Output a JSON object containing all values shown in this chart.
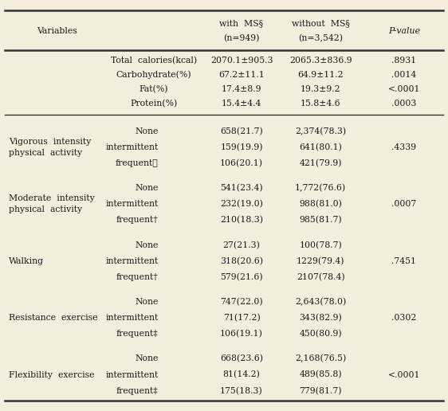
{
  "bg_color": "#f5eedc",
  "text_color": "#1a1a1a",
  "line_color": "#333333",
  "font_size": 7.8,
  "header": {
    "variables": "Variables",
    "with_ms": "with  MS§",
    "n_with": "(n=949)",
    "without_ms": "without  MS§",
    "n_without": "(n=3,542)",
    "pvalue": "P-value"
  },
  "diet_rows": [
    [
      "Total  calories(kcal)",
      "2070.1±905.3",
      "2065.3±836.9",
      ".8931"
    ],
    [
      "Carbohydrate(%)",
      "67.2±11.1",
      "64.9±11.2",
      ".0014"
    ],
    [
      "Fat(%)",
      "17.4±8.9",
      "19.3±9.2",
      "<.0001"
    ],
    [
      "Protein(%)",
      "15.4±4.4",
      "15.8±4.6",
      ".0003"
    ]
  ],
  "exercise_sections": [
    {
      "label": [
        "Vigorous  intensity",
        "physical  activity"
      ],
      "rows": [
        [
          "None",
          "658(21.7)",
          "2,374(78.3)",
          ""
        ],
        [
          "intermittent",
          "159(19.9)",
          "641(80.1)",
          ".4339"
        ],
        [
          "frequent★",
          "106(20.1)",
          "421(79.9)",
          ""
        ]
      ]
    },
    {
      "label": [
        "Moderate  intensity",
        "physical  activity"
      ],
      "rows": [
        [
          "None",
          "541(23.4)",
          "1,772(76.6)",
          ""
        ],
        [
          "intermittent",
          "232(19.0)",
          "988(81.0)",
          ".0007"
        ],
        [
          "frequent†",
          "210(18.3)",
          "985(81.7)",
          ""
        ]
      ]
    },
    {
      "label": [
        "Walking",
        ""
      ],
      "rows": [
        [
          "None",
          "27(21.3)",
          "100(78.7)",
          ""
        ],
        [
          "intermittent",
          "318(20.6)",
          "1229(79.4)",
          ".7451"
        ],
        [
          "frequent†",
          "579(21.6)",
          "2107(78.4)",
          ""
        ]
      ]
    },
    {
      "label": [
        "Resistance  exercise",
        ""
      ],
      "rows": [
        [
          "None",
          "747(22.0)",
          "2,643(78.0)",
          ""
        ],
        [
          "intermittent",
          "71(17.2)",
          "343(82.9)",
          ".0302"
        ],
        [
          "frequent‡",
          "106(19.1)",
          "450(80.9)",
          ""
        ]
      ]
    },
    {
      "label": [
        "Flexibility  exercise",
        ""
      ],
      "rows": [
        [
          "None",
          "668(23.6)",
          "2,168(76.5)",
          ""
        ],
        [
          "intermittent",
          "81(14.2)",
          "489(85.8)",
          "<.0001"
        ],
        [
          "frequent‡",
          "175(18.3)",
          "779(81.7)",
          ""
        ]
      ]
    }
  ]
}
